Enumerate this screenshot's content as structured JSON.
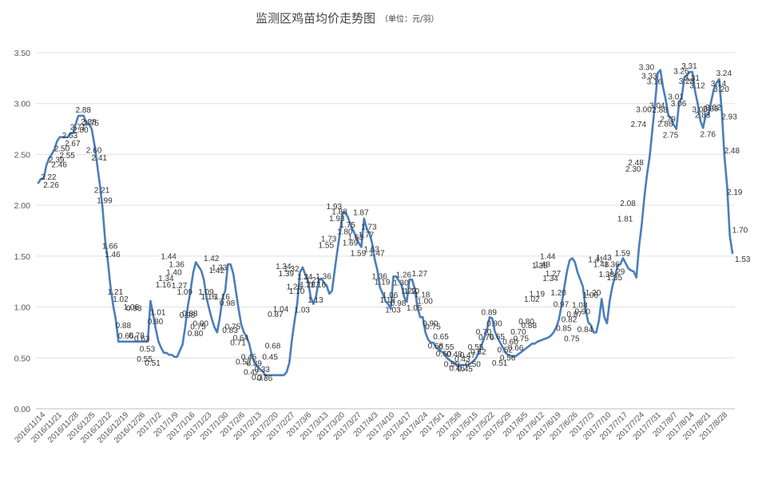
{
  "chart_data": {
    "type": "line",
    "title": "监测区鸡苗均价走势图",
    "subtitle": "（单位：元/羽）",
    "xlabel": "",
    "ylabel": "",
    "ylim": [
      0,
      3.5
    ],
    "yticks": [
      "0.00",
      "0.50",
      "1.00",
      "1.50",
      "2.00",
      "2.50",
      "3.00",
      "3.50"
    ],
    "grid": true,
    "legend": "none",
    "line_color": "#4a7ebb",
    "x_tick_labels": [
      "2016/11/14",
      "2016/11/21",
      "2016/11/28",
      "2016/12/5",
      "2016/12/12",
      "2016/12/19",
      "2016/12/26",
      "2017/1/2",
      "2017/1/9",
      "2017/1/16",
      "2017/1/23",
      "2017/1/30",
      "2017/2/6",
      "2017/2/13",
      "2017/2/20",
      "2017/2/27",
      "2017/3/6",
      "2017/3/13",
      "2017/3/20",
      "2017/3/27",
      "2017/4/3",
      "2017/4/10",
      "2017/4/17",
      "2017/4/24",
      "2017/5/1",
      "2017/5/8",
      "2017/5/15",
      "2017/5/22",
      "2017/5/29",
      "2017/6/5",
      "2017/6/12",
      "2017/6/19",
      "2017/6/26",
      "2017/7/3",
      "2017/7/10",
      "2017/7/17",
      "2017/7/24",
      "2017/7/31",
      "2017/8/7",
      "2017/8/14",
      "2017/8/21",
      "2017/8/28"
    ],
    "series": [
      {
        "values": [
          2.22,
          2.26,
          2.26,
          2.39,
          2.46,
          2.5,
          2.55,
          2.63,
          2.67,
          2.67,
          2.67,
          2.67,
          2.71,
          2.71,
          2.8,
          2.88,
          2.88,
          2.88,
          2.8,
          2.8,
          2.75,
          2.6,
          2.41,
          2.21,
          1.99,
          1.66,
          1.46,
          1.21,
          1.02,
          0.88,
          0.66,
          0.66,
          0.66,
          0.66,
          0.66,
          0.66,
          0.66,
          0.66,
          0.66,
          0.66,
          0.66,
          0.66,
          1.06,
          0.93,
          0.78,
          0.66,
          0.6,
          0.55,
          0.55,
          0.53,
          0.53,
          0.51,
          0.51,
          0.57,
          0.63,
          0.8,
          1.01,
          1.16,
          1.34,
          1.44,
          1.4,
          1.36,
          1.27,
          1.09,
          0.98,
          0.88,
          0.8,
          0.75,
          0.9,
          1.09,
          1.16,
          1.42,
          1.42,
          1.33,
          1.16,
          0.98,
          0.83,
          0.75,
          0.71,
          0.64,
          0.52,
          0.45,
          0.42,
          0.39,
          0.37,
          0.33,
          0.33,
          0.33,
          0.33,
          0.33,
          0.33,
          0.33,
          0.33,
          0.36,
          0.45,
          0.68,
          0.87,
          1.04,
          1.34,
          1.39,
          1.32,
          1.26,
          1.1,
          1.03,
          1.1,
          1.26,
          1.28,
          1.24,
          1.21,
          1.13,
          1.16,
          1.36,
          1.55,
          1.73,
          1.93,
          1.93,
          1.88,
          1.8,
          1.75,
          1.69,
          1.63,
          1.59,
          1.87,
          1.77,
          1.73,
          1.63,
          1.47,
          1.36,
          1.19,
          1.13,
          1.06,
          1.03,
          0.98,
          1.3,
          1.3,
          1.26,
          1.22,
          1.1,
          1.05,
          1.27,
          1.27,
          1.18,
          1.0,
          0.9,
          0.9,
          0.75,
          0.68,
          0.65,
          0.65,
          0.6,
          0.58,
          0.56,
          0.55,
          0.5,
          0.48,
          0.46,
          0.45,
          0.43,
          0.43,
          0.43,
          0.43,
          0.43,
          0.45,
          0.47,
          0.5,
          0.55,
          0.62,
          0.7,
          0.77,
          0.9,
          0.89,
          0.76,
          0.7,
          0.65,
          0.6,
          0.55,
          0.53,
          0.52,
          0.51,
          0.52,
          0.54,
          0.56,
          0.58,
          0.6,
          0.62,
          0.64,
          0.64,
          0.66,
          0.67,
          0.68,
          0.69,
          0.7,
          0.72,
          0.75,
          0.8,
          0.88,
          1.02,
          1.19,
          1.35,
          1.46,
          1.48,
          1.44,
          1.34,
          1.27,
          1.2,
          0.97,
          0.85,
          0.82,
          0.75,
          0.75,
          0.87,
          1.08,
          0.9,
          0.84,
          1.06,
          1.2,
          1.3,
          1.41,
          1.42,
          1.48,
          1.43,
          1.38,
          1.36,
          1.35,
          1.29,
          1.59,
          1.81,
          2.08,
          2.3,
          2.48,
          2.74,
          3.0,
          3.3,
          3.33,
          3.16,
          3.04,
          2.88,
          2.86,
          2.79,
          2.75,
          3.01,
          3.06,
          3.26,
          3.28,
          3.31,
          3.31,
          3.12,
          3.0,
          2.83,
          2.76,
          2.89,
          2.89,
          3.02,
          3.14,
          3.2,
          3.24,
          2.93,
          2.48,
          2.19,
          1.7,
          1.53
        ],
        "labels_shown": [
          "2.22",
          "2.26",
          "2.39",
          "2.46",
          "2.50",
          "2.55",
          "2.63",
          "2.67",
          "2.71",
          "2.80",
          "2.88",
          "2.88",
          "2.75",
          "2.60",
          "2.41",
          "2.21",
          "1.99",
          "1.66",
          "1.46",
          "1.21",
          "1.02",
          "0.88",
          "0.66",
          "1.06",
          "0.93",
          "0.78",
          "0.63",
          "0.55",
          "0.53",
          "0.51",
          "0.80",
          "1.01",
          "1.16",
          "1.34",
          "1.44",
          "1.40",
          "1.36",
          "1.27",
          "1.09",
          "0.98",
          "0.88",
          "0.80",
          "0.75",
          "0.90",
          "1.09",
          "1.16",
          "1.42",
          "1.42",
          "1.33",
          "1.16",
          "0.98",
          "0.83",
          "0.75",
          "0.71",
          "0.64",
          "0.52",
          "0.45",
          "0.42",
          "0.39",
          "0.37",
          "0.33",
          "0.36",
          "0.45",
          "0.68",
          "0.87",
          "1.04",
          "1.34",
          "1.39",
          "1.32",
          "1.26",
          "1.10",
          "1.03",
          "1.24",
          "1.28",
          "1.21",
          "1.13",
          "1.16",
          "1.36",
          "1.55",
          "1.73",
          "1.93",
          "1.93",
          "1.88",
          "1.80",
          "1.75",
          "1.69",
          "1.63",
          "1.59",
          "1.87",
          "1.77",
          "1.73",
          "1.63",
          "1.47",
          "1.36",
          "1.19",
          "1.13",
          "1.06",
          "1.03",
          "0.98",
          "1.30",
          "1.26",
          "1.22",
          "1.10",
          "1.05",
          "1.27",
          "1.18",
          "1.00",
          "0.90",
          "0.75",
          "0.68",
          "0.65",
          "0.60",
          "0.55",
          "0.50",
          "0.48",
          "0.46",
          "0.43",
          "0.45",
          "0.47",
          "0.50",
          "0.55",
          "0.62",
          "0.70",
          "0.76",
          "0.89",
          "0.90",
          "0.65",
          "0.51",
          "0.52",
          "0.56",
          "0.60",
          "0.66",
          "0.70",
          "0.75",
          "0.80",
          "0.88",
          "1.02",
          "1.19",
          "1.35",
          "1.48",
          "1.44",
          "1.34",
          "1.27",
          "1.20",
          "0.97",
          "0.85",
          "0.82",
          "0.75",
          "0.87",
          "1.08",
          "0.90",
          "0.84",
          "1.06",
          "1.20",
          "1.41",
          "1.48",
          "1.43",
          "1.38",
          "1.36",
          "1.35",
          "1.29",
          "1.59",
          "1.81",
          "2.08",
          "2.30",
          "2.48",
          "2.74",
          "3.00",
          "3.30",
          "3.33",
          "3.16",
          "3.04",
          "2.88",
          "2.86",
          "2.79",
          "2.75",
          "3.01",
          "3.06",
          "3.26",
          "3.28",
          "3.31",
          "3.31",
          "3.12",
          "3.00",
          "2.83",
          "2.76",
          "2.89",
          "3.02",
          "3.14",
          "3.20",
          "3.24",
          "2.93",
          "2.48",
          "2.19",
          "1.70",
          "1.53"
        ]
      }
    ]
  }
}
